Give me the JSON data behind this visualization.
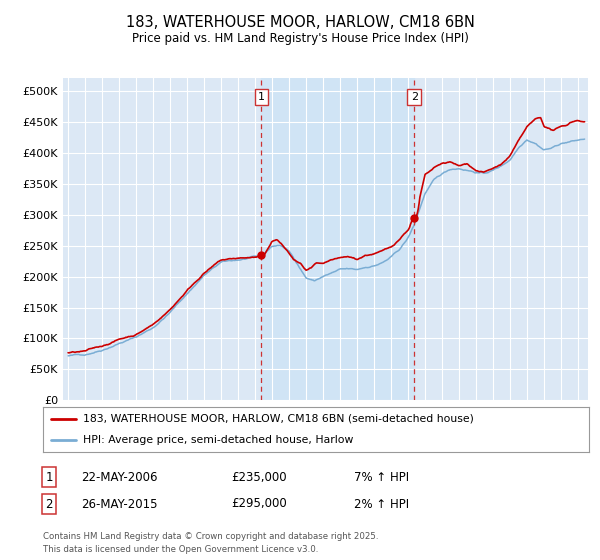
{
  "title": "183, WATERHOUSE MOOR, HARLOW, CM18 6BN",
  "subtitle": "Price paid vs. HM Land Registry's House Price Index (HPI)",
  "red_label": "183, WATERHOUSE MOOR, HARLOW, CM18 6BN (semi-detached house)",
  "blue_label": "HPI: Average price, semi-detached house, Harlow",
  "annotation1": {
    "num": "1",
    "date": "22-MAY-2006",
    "price": "£235,000",
    "hpi": "7% ↑ HPI",
    "x_year": 2006.38
  },
  "annotation2": {
    "num": "2",
    "date": "26-MAY-2015",
    "price": "£295,000",
    "hpi": "2% ↑ HPI",
    "x_year": 2015.38
  },
  "footer": "Contains HM Land Registry data © Crown copyright and database right 2025.\nThis data is licensed under the Open Government Licence v3.0.",
  "ylim": [
    0,
    520000
  ],
  "xlim_start": 1994.7,
  "xlim_end": 2025.6,
  "yticks": [
    0,
    50000,
    100000,
    150000,
    200000,
    250000,
    300000,
    350000,
    400000,
    450000,
    500000
  ],
  "ytick_labels": [
    "£0",
    "£50K",
    "£100K",
    "£150K",
    "£200K",
    "£250K",
    "£300K",
    "£350K",
    "£400K",
    "£450K",
    "£500K"
  ],
  "xticks": [
    1995,
    1996,
    1997,
    1998,
    1999,
    2000,
    2001,
    2002,
    2003,
    2004,
    2005,
    2006,
    2007,
    2008,
    2009,
    2010,
    2011,
    2012,
    2013,
    2014,
    2015,
    2016,
    2017,
    2018,
    2019,
    2020,
    2021,
    2022,
    2023,
    2024,
    2025
  ],
  "red_color": "#cc0000",
  "blue_color": "#7aadd4",
  "shade_color": "#d0e4f5",
  "background_plot": "#dce8f5",
  "grid_color": "#ffffff",
  "vline_color": "#cc3333",
  "sale1_y": 235000,
  "sale2_y": 295000,
  "blue_keypoints": [
    [
      1995.0,
      72000
    ],
    [
      1996.0,
      74000
    ],
    [
      1997.0,
      83000
    ],
    [
      1998.0,
      95000
    ],
    [
      1999.0,
      105000
    ],
    [
      2000.0,
      120000
    ],
    [
      2001.0,
      145000
    ],
    [
      2002.0,
      175000
    ],
    [
      2003.0,
      205000
    ],
    [
      2004.0,
      225000
    ],
    [
      2005.0,
      228000
    ],
    [
      2006.0,
      232000
    ],
    [
      2006.38,
      232000
    ],
    [
      2007.0,
      248000
    ],
    [
      2007.5,
      250000
    ],
    [
      2008.0,
      240000
    ],
    [
      2008.5,
      220000
    ],
    [
      2009.0,
      198000
    ],
    [
      2009.5,
      193000
    ],
    [
      2010.0,
      200000
    ],
    [
      2010.5,
      205000
    ],
    [
      2011.0,
      210000
    ],
    [
      2011.5,
      210000
    ],
    [
      2012.0,
      208000
    ],
    [
      2012.5,
      212000
    ],
    [
      2013.0,
      215000
    ],
    [
      2013.5,
      220000
    ],
    [
      2014.0,
      228000
    ],
    [
      2014.5,
      240000
    ],
    [
      2015.0,
      258000
    ],
    [
      2015.38,
      280000
    ],
    [
      2015.5,
      290000
    ],
    [
      2016.0,
      330000
    ],
    [
      2016.5,
      350000
    ],
    [
      2017.0,
      360000
    ],
    [
      2017.5,
      368000
    ],
    [
      2018.0,
      370000
    ],
    [
      2018.5,
      368000
    ],
    [
      2019.0,
      365000
    ],
    [
      2019.5,
      363000
    ],
    [
      2020.0,
      368000
    ],
    [
      2020.5,
      375000
    ],
    [
      2021.0,
      385000
    ],
    [
      2021.5,
      405000
    ],
    [
      2022.0,
      420000
    ],
    [
      2022.5,
      415000
    ],
    [
      2023.0,
      405000
    ],
    [
      2023.5,
      408000
    ],
    [
      2024.0,
      415000
    ],
    [
      2024.5,
      418000
    ],
    [
      2025.0,
      420000
    ],
    [
      2025.4,
      422000
    ]
  ],
  "red_keypoints": [
    [
      1995.0,
      77000
    ],
    [
      1996.0,
      79000
    ],
    [
      1997.0,
      87000
    ],
    [
      1998.0,
      99000
    ],
    [
      1999.0,
      108000
    ],
    [
      2000.0,
      125000
    ],
    [
      2001.0,
      150000
    ],
    [
      2002.0,
      182000
    ],
    [
      2003.0,
      212000
    ],
    [
      2004.0,
      232000
    ],
    [
      2005.0,
      235000
    ],
    [
      2006.0,
      237000
    ],
    [
      2006.38,
      235000
    ],
    [
      2006.6,
      242000
    ],
    [
      2007.0,
      262000
    ],
    [
      2007.3,
      265000
    ],
    [
      2007.8,
      250000
    ],
    [
      2008.3,
      232000
    ],
    [
      2008.7,
      225000
    ],
    [
      2009.0,
      215000
    ],
    [
      2009.3,
      218000
    ],
    [
      2009.6,
      225000
    ],
    [
      2010.0,
      222000
    ],
    [
      2010.5,
      228000
    ],
    [
      2011.0,
      230000
    ],
    [
      2011.5,
      232000
    ],
    [
      2012.0,
      228000
    ],
    [
      2012.5,
      235000
    ],
    [
      2013.0,
      238000
    ],
    [
      2013.5,
      242000
    ],
    [
      2014.0,
      248000
    ],
    [
      2014.5,
      262000
    ],
    [
      2015.0,
      278000
    ],
    [
      2015.38,
      295000
    ],
    [
      2015.5,
      305000
    ],
    [
      2016.0,
      365000
    ],
    [
      2016.5,
      375000
    ],
    [
      2017.0,
      383000
    ],
    [
      2017.5,
      385000
    ],
    [
      2018.0,
      378000
    ],
    [
      2018.5,
      382000
    ],
    [
      2019.0,
      372000
    ],
    [
      2019.5,
      370000
    ],
    [
      2020.0,
      375000
    ],
    [
      2020.5,
      382000
    ],
    [
      2021.0,
      395000
    ],
    [
      2021.5,
      418000
    ],
    [
      2022.0,
      440000
    ],
    [
      2022.5,
      452000
    ],
    [
      2022.8,
      455000
    ],
    [
      2023.0,
      442000
    ],
    [
      2023.5,
      435000
    ],
    [
      2024.0,
      440000
    ],
    [
      2024.3,
      442000
    ],
    [
      2024.6,
      448000
    ],
    [
      2025.0,
      452000
    ],
    [
      2025.4,
      450000
    ]
  ]
}
